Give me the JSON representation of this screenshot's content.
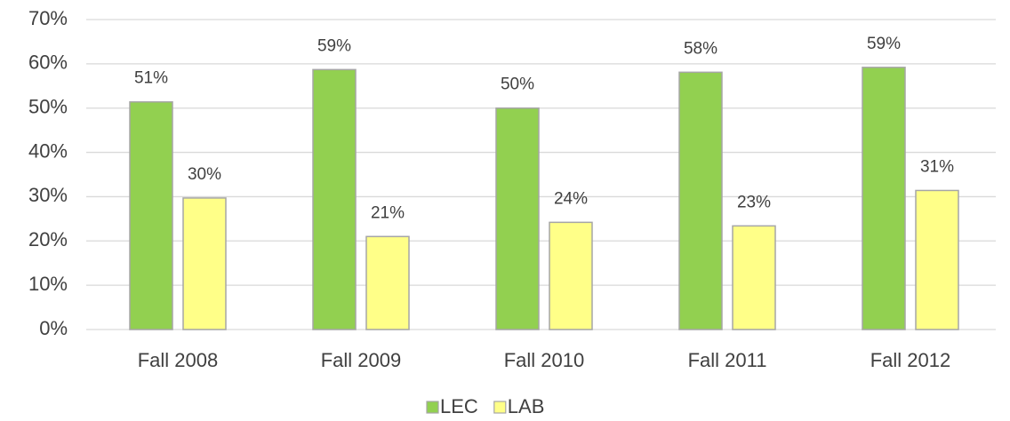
{
  "chart_data": {
    "type": "bar",
    "categories": [
      "Fall 2008",
      "Fall 2009",
      "Fall 2010",
      "Fall 2011",
      "Fall 2012"
    ],
    "series": [
      {
        "name": "LEC",
        "color": "#92d050",
        "values": [
          51.4,
          58.7,
          50.0,
          58.1,
          59.2
        ],
        "value_labels": [
          "51%",
          "59%",
          "50%",
          "58%",
          "59%"
        ]
      },
      {
        "name": "LAB",
        "color": "#ffff88",
        "values": [
          29.7,
          21.0,
          24.2,
          23.4,
          31.4
        ],
        "value_labels": [
          "30%",
          "21%",
          "24%",
          "23%",
          "31%"
        ]
      }
    ],
    "ylim": [
      0,
      70
    ],
    "yticks": [
      {
        "value": 0,
        "label": "0%"
      },
      {
        "value": 10,
        "label": "10%"
      },
      {
        "value": 20,
        "label": "20%"
      },
      {
        "value": 30,
        "label": "30%"
      },
      {
        "value": 40,
        "label": "40%"
      },
      {
        "value": 50,
        "label": "50%"
      },
      {
        "value": 60,
        "label": "60%"
      },
      {
        "value": 70,
        "label": "70%"
      }
    ],
    "grid": true,
    "legend": "bottom"
  }
}
